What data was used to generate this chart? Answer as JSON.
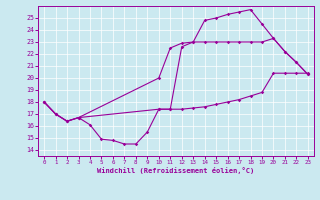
{
  "xlabel": "Windchill (Refroidissement éolien,°C)",
  "xlim": [
    -0.5,
    23.5
  ],
  "ylim": [
    13.5,
    26.0
  ],
  "xticks": [
    0,
    1,
    2,
    3,
    4,
    5,
    6,
    7,
    8,
    9,
    10,
    11,
    12,
    13,
    14,
    15,
    16,
    17,
    18,
    19,
    20,
    21,
    22,
    23
  ],
  "yticks": [
    14,
    15,
    16,
    17,
    18,
    19,
    20,
    21,
    22,
    23,
    24,
    25
  ],
  "bg_color": "#cbe9f0",
  "line_color": "#990099",
  "line1_x": [
    0,
    1,
    2,
    3,
    4,
    5,
    6,
    7,
    8,
    9,
    10,
    11,
    12,
    13,
    14,
    15,
    16,
    17,
    18,
    19,
    20,
    21,
    22,
    23
  ],
  "line1_y": [
    18,
    17,
    16.4,
    16.7,
    16.1,
    14.9,
    14.8,
    14.5,
    14.5,
    15.5,
    17.4,
    17.4,
    22.6,
    23.0,
    24.8,
    25.0,
    25.3,
    25.5,
    25.7,
    24.5,
    23.3,
    22.2,
    21.3,
    20.3
  ],
  "line2_x": [
    0,
    1,
    2,
    3,
    10,
    11,
    12,
    13,
    14,
    15,
    16,
    17,
    18,
    19,
    20,
    21,
    22,
    23
  ],
  "line2_y": [
    18,
    17,
    16.4,
    16.7,
    20.0,
    22.5,
    22.9,
    23.0,
    23.0,
    23.0,
    23.0,
    23.0,
    23.0,
    23.0,
    23.3,
    22.2,
    21.3,
    20.3
  ],
  "line3_x": [
    0,
    1,
    2,
    3,
    10,
    11,
    12,
    13,
    14,
    15,
    16,
    17,
    18,
    19,
    20,
    21,
    22,
    23
  ],
  "line3_y": [
    18,
    17,
    16.4,
    16.7,
    17.4,
    17.4,
    17.4,
    17.5,
    17.6,
    17.8,
    18.0,
    18.2,
    18.5,
    18.8,
    20.4,
    20.4,
    20.4,
    20.4
  ]
}
